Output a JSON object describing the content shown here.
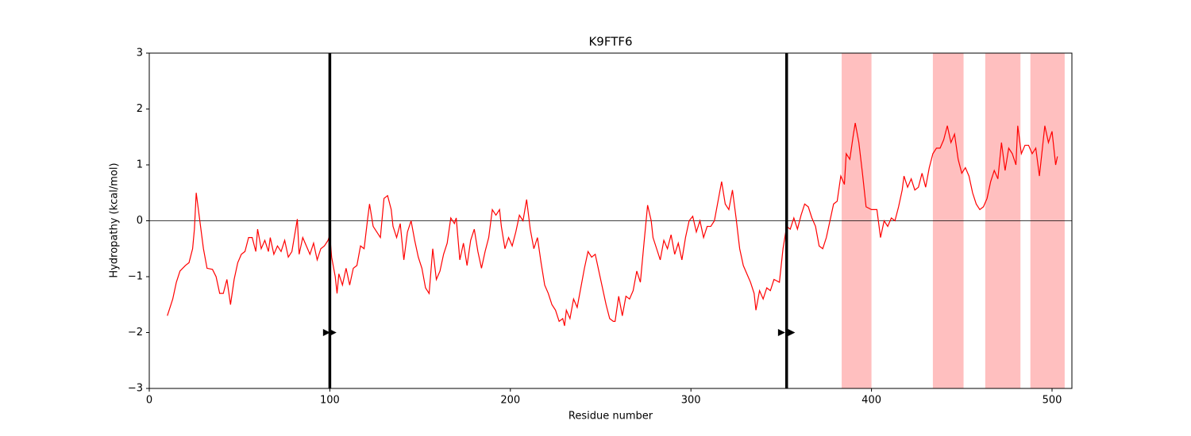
{
  "chart_data": {
    "type": "line",
    "title": "K9FTF6",
    "x_label": "Residue number",
    "y_label": "Hydropathy (kcal/mol)",
    "color": "#ff0000",
    "x": [
      10,
      13,
      15,
      17,
      20,
      22,
      24,
      25,
      26,
      28,
      30,
      32,
      35,
      37,
      39,
      41,
      43,
      45,
      47,
      49,
      51,
      53,
      55,
      57,
      59,
      60,
      62,
      64,
      66,
      67,
      69,
      71,
      73,
      75,
      77,
      79,
      82,
      83,
      85,
      87,
      89,
      91,
      93,
      95,
      97,
      99,
      100,
      101,
      103,
      104,
      105,
      107,
      109,
      111,
      113,
      115,
      117,
      119,
      121,
      122,
      124,
      126,
      128,
      130,
      132,
      134,
      135,
      137,
      139,
      141,
      143,
      145,
      147,
      149,
      151,
      153,
      155,
      157,
      159,
      161,
      163,
      165,
      167,
      169,
      170,
      172,
      174,
      176,
      178,
      180,
      182,
      184,
      186,
      188,
      190,
      192,
      194,
      195,
      197,
      199,
      201,
      203,
      205,
      207,
      209,
      211,
      213,
      215,
      217,
      219,
      221,
      223,
      225,
      227,
      229,
      230,
      231,
      233,
      235,
      237,
      239,
      241,
      243,
      245,
      247,
      249,
      251,
      253,
      255,
      257,
      258,
      260,
      262,
      264,
      266,
      268,
      270,
      272,
      274,
      276,
      278,
      279,
      281,
      283,
      285,
      287,
      289,
      291,
      293,
      295,
      297,
      299,
      301,
      303,
      305,
      307,
      309,
      311,
      313,
      315,
      317,
      319,
      321,
      323,
      325,
      327,
      329,
      331,
      333,
      335,
      336,
      338,
      340,
      342,
      344,
      346,
      349,
      351,
      353,
      355,
      357,
      359,
      361,
      363,
      365,
      367,
      369,
      371,
      373,
      375,
      377,
      379,
      381,
      383,
      385,
      386,
      388,
      390,
      391,
      393,
      395,
      397,
      400,
      403,
      405,
      407,
      409,
      411,
      413,
      415,
      417,
      418,
      420,
      422,
      424,
      426,
      428,
      430,
      432,
      434,
      436,
      438,
      440,
      442,
      444,
      446,
      448,
      450,
      452,
      454,
      456,
      458,
      460,
      462,
      464,
      466,
      468,
      470,
      472,
      474,
      476,
      478,
      480,
      481,
      483,
      485,
      487,
      489,
      491,
      493,
      495,
      496,
      498,
      500,
      502,
      503
    ],
    "values": [
      -1.7,
      -1.4,
      -1.1,
      -0.9,
      -0.8,
      -0.75,
      -0.5,
      -0.15,
      0.5,
      0.0,
      -0.5,
      -0.85,
      -0.87,
      -1.0,
      -1.3,
      -1.3,
      -1.05,
      -1.5,
      -1.05,
      -0.75,
      -0.6,
      -0.55,
      -0.3,
      -0.3,
      -0.55,
      -0.15,
      -0.5,
      -0.35,
      -0.55,
      -0.3,
      -0.6,
      -0.45,
      -0.55,
      -0.35,
      -0.65,
      -0.55,
      0.03,
      -0.6,
      -0.3,
      -0.45,
      -0.6,
      -0.4,
      -0.7,
      -0.5,
      -0.45,
      -0.35,
      -0.25,
      -0.65,
      -1.0,
      -1.3,
      -0.95,
      -1.15,
      -0.85,
      -1.15,
      -0.85,
      -0.8,
      -0.45,
      -0.5,
      0.05,
      0.3,
      -0.1,
      -0.2,
      -0.3,
      0.4,
      0.45,
      0.2,
      -0.1,
      -0.3,
      -0.05,
      -0.7,
      -0.2,
      0.0,
      -0.35,
      -0.65,
      -0.85,
      -1.2,
      -1.3,
      -0.5,
      -1.05,
      -0.9,
      -0.6,
      -0.4,
      0.05,
      -0.05,
      0.05,
      -0.7,
      -0.4,
      -0.8,
      -0.35,
      -0.15,
      -0.55,
      -0.85,
      -0.55,
      -0.3,
      0.2,
      0.1,
      0.2,
      -0.1,
      -0.5,
      -0.3,
      -0.45,
      -0.2,
      0.1,
      0.0,
      0.38,
      -0.15,
      -0.5,
      -0.3,
      -0.75,
      -1.15,
      -1.3,
      -1.5,
      -1.6,
      -1.8,
      -1.75,
      -1.88,
      -1.6,
      -1.75,
      -1.4,
      -1.55,
      -1.2,
      -0.85,
      -0.55,
      -0.65,
      -0.6,
      -0.9,
      -1.2,
      -1.5,
      -1.75,
      -1.8,
      -1.8,
      -1.35,
      -1.7,
      -1.35,
      -1.4,
      -1.25,
      -0.9,
      -1.1,
      -0.4,
      0.28,
      0.0,
      -0.3,
      -0.5,
      -0.7,
      -0.35,
      -0.5,
      -0.25,
      -0.6,
      -0.4,
      -0.7,
      -0.3,
      0.0,
      0.08,
      -0.2,
      0.0,
      -0.3,
      -0.1,
      -0.1,
      0.0,
      0.35,
      0.7,
      0.3,
      0.2,
      0.55,
      0.05,
      -0.5,
      -0.8,
      -0.95,
      -1.1,
      -1.3,
      -1.6,
      -1.25,
      -1.4,
      -1.2,
      -1.25,
      -1.05,
      -1.1,
      -0.5,
      -0.1,
      -0.15,
      0.05,
      -0.15,
      0.1,
      0.3,
      0.25,
      0.05,
      -0.1,
      -0.45,
      -0.5,
      -0.3,
      0.0,
      0.3,
      0.35,
      0.8,
      0.65,
      1.2,
      1.1,
      1.55,
      1.75,
      1.4,
      0.85,
      0.25,
      0.2,
      0.2,
      -0.3,
      0.0,
      -0.1,
      0.05,
      0.0,
      0.25,
      0.55,
      0.8,
      0.6,
      0.75,
      0.55,
      0.6,
      0.85,
      0.6,
      0.95,
      1.2,
      1.3,
      1.3,
      1.45,
      1.7,
      1.4,
      1.55,
      1.1,
      0.85,
      0.95,
      0.8,
      0.5,
      0.3,
      0.2,
      0.25,
      0.4,
      0.7,
      0.9,
      0.75,
      1.4,
      0.9,
      1.3,
      1.2,
      1.0,
      1.7,
      1.2,
      1.35,
      1.35,
      1.2,
      1.3,
      0.8,
      1.4,
      1.7,
      1.4,
      1.6,
      1.0,
      1.15
    ],
    "xlim": [
      0,
      511
    ],
    "ylim": [
      -3,
      3
    ],
    "xticks": [
      0,
      100,
      200,
      300,
      400,
      500
    ],
    "yticks": [
      {
        "value": -3,
        "label": "−3"
      },
      {
        "value": -2,
        "label": "−2"
      },
      {
        "value": -1,
        "label": "−1"
      },
      0,
      1,
      2,
      3
    ],
    "hline": 0,
    "vlines": [
      100,
      353
    ],
    "markers": {
      "x": [
        98,
        101.5,
        350,
        355.5
      ],
      "y": [
        -2,
        -2,
        -2,
        -2
      ]
    },
    "spans": [
      [
        383.5,
        400
      ],
      [
        434,
        451
      ],
      [
        463,
        482.5
      ],
      [
        488,
        507
      ]
    ],
    "span_color": "#ffbfbf"
  }
}
